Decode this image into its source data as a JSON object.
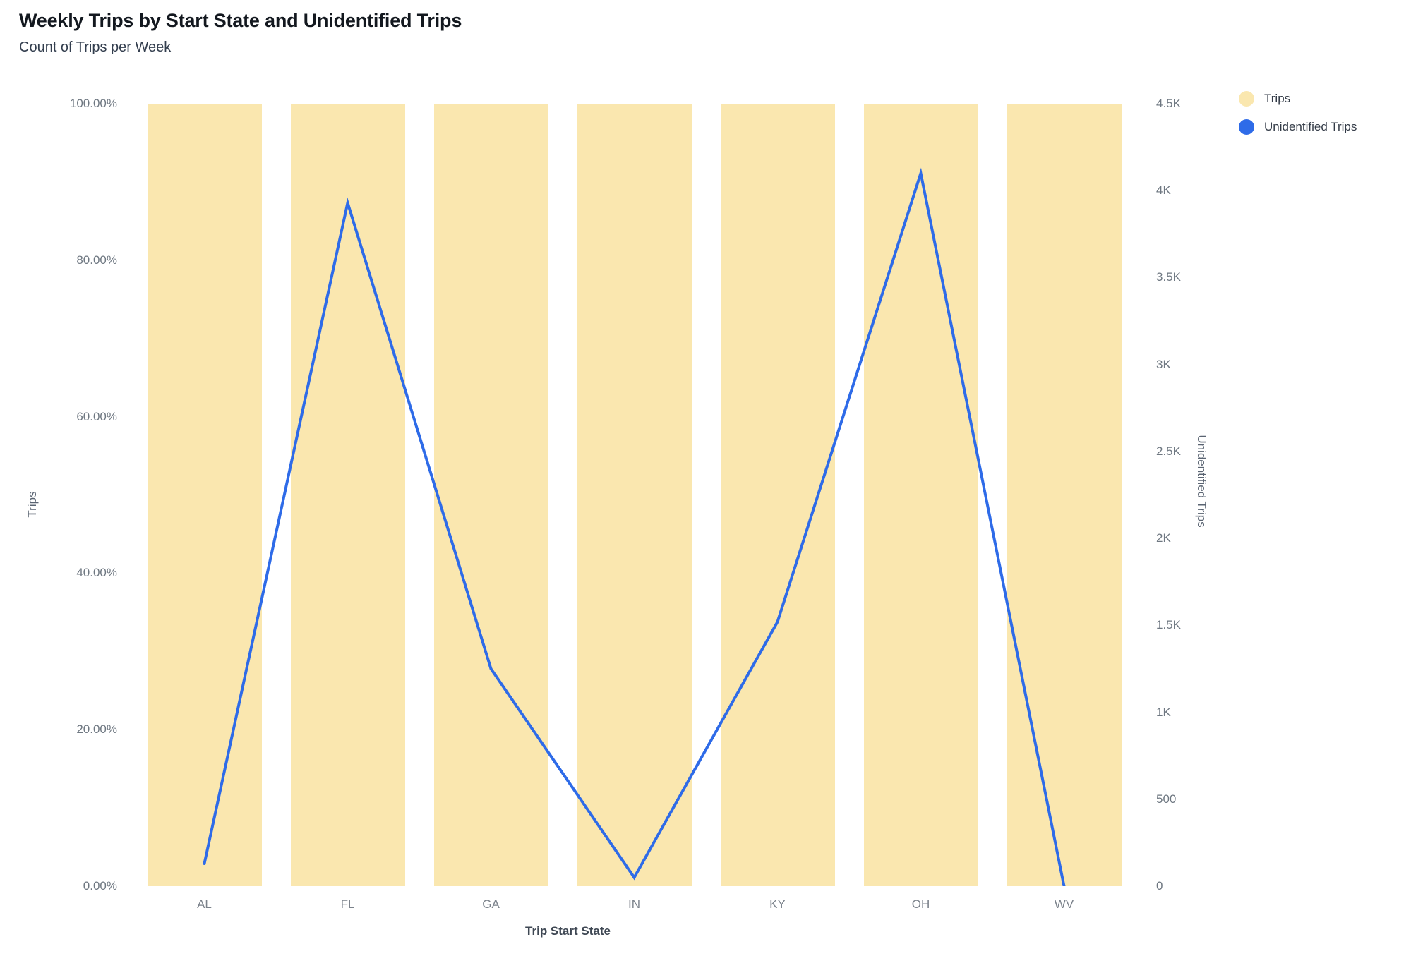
{
  "header": {
    "title": "Weekly Trips by Start State and Unidentified Trips",
    "subtitle": "Count of Trips per Week"
  },
  "legend": {
    "position": "top-right",
    "items": [
      {
        "label": "Trips",
        "color": "#fae7af"
      },
      {
        "label": "Unidentified Trips",
        "color": "#2e6be8"
      }
    ]
  },
  "chart_data": {
    "type": "combo-bar-line",
    "title": "Weekly Trips by Start State and Unidentified Trips",
    "subtitle": "Count of Trips per Week",
    "categories": [
      "AL",
      "FL",
      "GA",
      "IN",
      "KY",
      "OH",
      "WV"
    ],
    "series": [
      {
        "name": "Trips",
        "type": "bar",
        "yaxis": "left",
        "unit": "percent",
        "values": [
          100,
          100,
          100,
          100,
          100,
          100,
          100
        ],
        "color": "#fae7af"
      },
      {
        "name": "Unidentified Trips",
        "type": "line",
        "yaxis": "right",
        "values": [
          130,
          3930,
          1250,
          50,
          1520,
          4100,
          0
        ],
        "color": "#2e6be8"
      }
    ],
    "xlabel": "Trip Start State",
    "ylabel_left": "Trips",
    "ylabel_right": "Unidentified Trips",
    "left_axis": {
      "ticks": [
        "100.00%",
        "80.00%",
        "60.00%",
        "40.00%",
        "20.00%",
        "0.00%"
      ],
      "range": [
        0,
        100
      ],
      "format": "percent"
    },
    "right_axis": {
      "ticks": [
        "4.5K",
        "4K",
        "3.5K",
        "3K",
        "2.5K",
        "2K",
        "1.5K",
        "1K",
        "500",
        "0"
      ],
      "range": [
        0,
        4500
      ]
    },
    "grid": false,
    "legend_position": "top-right"
  }
}
